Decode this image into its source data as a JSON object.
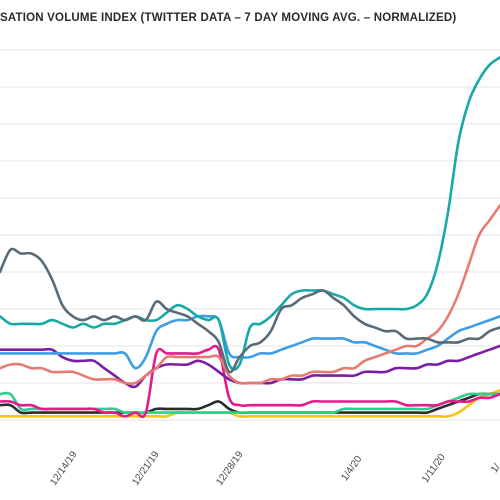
{
  "chart_data": {
    "type": "line",
    "title": "SATION VOLUME INDEX (TWITTER DATA – 7 DAY MOVING AVG. – NORMALIZED)",
    "xlabel": "",
    "ylabel": "",
    "x_ticks": [
      "12/14/19",
      "12/21/19",
      "12/28/19",
      "1/4/20",
      "1/11/20",
      "1/"
    ],
    "x_range": [
      0,
      48
    ],
    "ylim": [
      0,
      100
    ],
    "grid": "horizontal",
    "x": [
      0,
      1,
      2,
      3,
      4,
      5,
      6,
      7,
      8,
      9,
      10,
      11,
      12,
      13,
      14,
      15,
      16,
      17,
      18,
      19,
      20,
      21,
      22,
      23,
      24,
      25,
      26,
      27,
      28,
      29,
      30,
      31,
      32,
      33,
      34,
      35,
      36,
      37,
      38,
      39,
      40,
      41,
      42,
      43,
      44,
      45,
      46,
      47,
      48
    ],
    "series": [
      {
        "color": "#5a6b78",
        "values": [
          40,
          46,
          45,
          45,
          43,
          38,
          31,
          28,
          27,
          28,
          27,
          28,
          27,
          28,
          27,
          32,
          30,
          29,
          28,
          26,
          24,
          21,
          13,
          17,
          20,
          21,
          24,
          30,
          31,
          33,
          34,
          35,
          33,
          31,
          28,
          26,
          25,
          24,
          24,
          22,
          22,
          22,
          21,
          21,
          21,
          22,
          22,
          24,
          25
        ]
      },
      {
        "color": "#17a9a8",
        "values": [
          28,
          26,
          26,
          26,
          26,
          27,
          26,
          25,
          26,
          25,
          26,
          26,
          27,
          28,
          27,
          27,
          29,
          31,
          30,
          28,
          27,
          27,
          15,
          15,
          25,
          26,
          28,
          31,
          34,
          35,
          35,
          35,
          34,
          33,
          31,
          30,
          30,
          30,
          30,
          30,
          31,
          34,
          42,
          56,
          75,
          86,
          92,
          96,
          98
        ]
      },
      {
        "color": "#e57c72",
        "values": [
          14,
          15,
          15,
          14,
          14,
          13,
          13,
          13,
          12,
          11,
          11,
          11,
          10,
          10,
          12,
          14,
          17,
          17,
          17,
          17,
          17,
          17,
          12,
          10,
          10,
          10,
          11,
          11,
          12,
          12,
          13,
          13,
          13,
          14,
          14,
          16,
          17,
          18,
          19,
          20,
          20,
          22,
          24,
          28,
          34,
          42,
          50,
          54,
          58
        ]
      },
      {
        "color": "#3d9de6",
        "values": [
          18,
          18,
          18,
          18,
          18,
          18,
          18,
          18,
          18,
          18,
          18,
          18,
          18,
          14,
          17,
          24,
          26,
          27,
          27,
          28,
          28,
          27,
          18,
          17,
          17,
          18,
          18,
          19,
          20,
          21,
          22,
          22,
          22,
          22,
          21,
          21,
          20,
          19,
          18,
          18,
          18,
          19,
          20,
          22,
          24,
          25,
          26,
          27,
          28
        ]
      },
      {
        "color": "#7b1ea2",
        "values": [
          19,
          19,
          19,
          19,
          19,
          19,
          17,
          16,
          16,
          16,
          14,
          12,
          10,
          9,
          12,
          14,
          15,
          15,
          15,
          16,
          15,
          13,
          11,
          10,
          10,
          10,
          10,
          11,
          11,
          11,
          12,
          12,
          12,
          12,
          12,
          13,
          13,
          13,
          14,
          14,
          14,
          15,
          15,
          16,
          16,
          17,
          18,
          19,
          20
        ]
      },
      {
        "color": "#e8198b",
        "values": [
          5,
          5,
          4,
          4,
          3,
          3,
          3,
          3,
          3,
          3,
          2,
          2,
          1,
          2,
          2,
          18,
          18,
          18,
          18,
          18,
          19,
          19,
          6,
          4,
          4,
          4,
          4,
          4,
          4,
          4,
          5,
          5,
          5,
          5,
          5,
          5,
          5,
          5,
          5,
          4,
          4,
          4,
          4,
          5,
          5,
          5,
          6,
          6,
          7
        ]
      },
      {
        "color": "#2ecf8a",
        "values": [
          7,
          7,
          3,
          3,
          3,
          3,
          3,
          3,
          3,
          3,
          3,
          3,
          2,
          2,
          2,
          2,
          2,
          2,
          2,
          2,
          2,
          2,
          2,
          2,
          2,
          2,
          2,
          2,
          2,
          2,
          2,
          2,
          2,
          3,
          3,
          3,
          3,
          3,
          3,
          3,
          3,
          3,
          4,
          5,
          6,
          7,
          7,
          7,
          7
        ]
      },
      {
        "color": "#2b2b2b",
        "values": [
          4,
          4,
          2,
          2,
          2,
          2,
          2,
          2,
          2,
          2,
          2,
          2,
          2,
          2,
          2,
          3,
          3,
          3,
          3,
          3,
          4,
          5,
          3,
          2,
          2,
          2,
          2,
          2,
          2,
          2,
          2,
          2,
          2,
          2,
          2,
          2,
          2,
          2,
          2,
          2,
          2,
          2,
          3,
          4,
          5,
          6,
          7,
          7,
          7
        ]
      },
      {
        "color": "#f5c518",
        "values": [
          1,
          1,
          1,
          1,
          1,
          1,
          1,
          1,
          1,
          1,
          1,
          1,
          1,
          1,
          1,
          1,
          1,
          2,
          2,
          2,
          2,
          2,
          2,
          1,
          1,
          1,
          1,
          1,
          1,
          1,
          1,
          1,
          1,
          1,
          1,
          1,
          1,
          1,
          1,
          1,
          1,
          1,
          1,
          1,
          2,
          4,
          6,
          7,
          8
        ]
      }
    ]
  }
}
